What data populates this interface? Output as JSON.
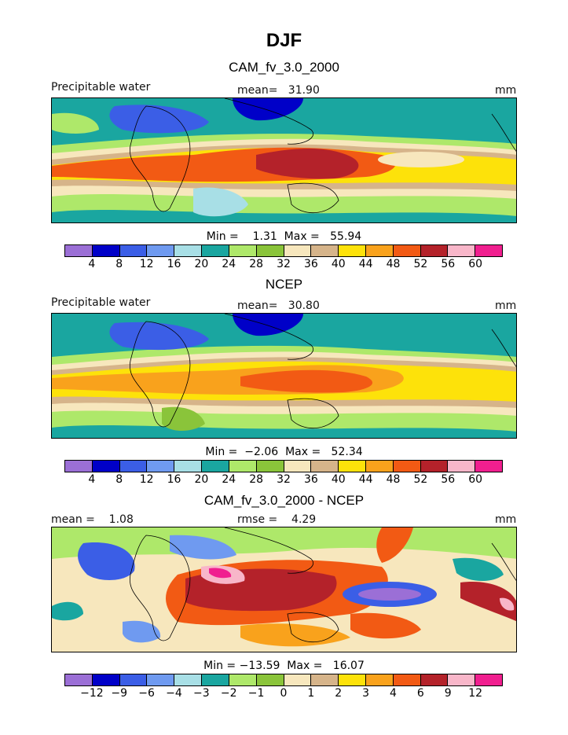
{
  "title": "DJF",
  "colors": [
    "#9b6fd6",
    "#0000c8",
    "#3b5ee6",
    "#6f9af0",
    "#a8dfe6",
    "#1aa6a0",
    "#aee86a",
    "#8ac43a",
    "#f7e7bd",
    "#d6b48a",
    "#fde20a",
    "#f9a21c",
    "#f25a14",
    "#b4222a",
    "#f8b6c9",
    "#f01f8f"
  ],
  "panels": [
    {
      "title": "CAM_fv_3.0_2000",
      "left_label": "Precipitable water",
      "center_label": "mean=   31.90",
      "right_label": "mm",
      "minmax": "Min =    1.31  Max =   55.94",
      "levels": [
        "4",
        "8",
        "12",
        "16",
        "20",
        "24",
        "28",
        "32",
        "36",
        "40",
        "44",
        "48",
        "52",
        "56",
        "60"
      ]
    },
    {
      "title": "NCEP",
      "left_label": "Precipitable water",
      "center_label": "mean=   30.80",
      "right_label": "mm",
      "minmax": "Min =  −2.06  Max =   52.34",
      "levels": [
        "4",
        "8",
        "12",
        "16",
        "20",
        "24",
        "28",
        "32",
        "36",
        "40",
        "44",
        "48",
        "52",
        "56",
        "60"
      ]
    },
    {
      "title": "CAM_fv_3.0_2000 - NCEP",
      "left_label": "mean =    1.08",
      "center_label": "rmse =    4.29",
      "right_label": "mm",
      "minmax": "Min = −13.59  Max =   16.07",
      "levels": [
        "−12",
        "−9",
        "−6",
        "−4",
        "−3",
        "−2",
        "−1",
        "0",
        "1",
        "2",
        "3",
        "4",
        "6",
        "9",
        "12"
      ]
    }
  ]
}
